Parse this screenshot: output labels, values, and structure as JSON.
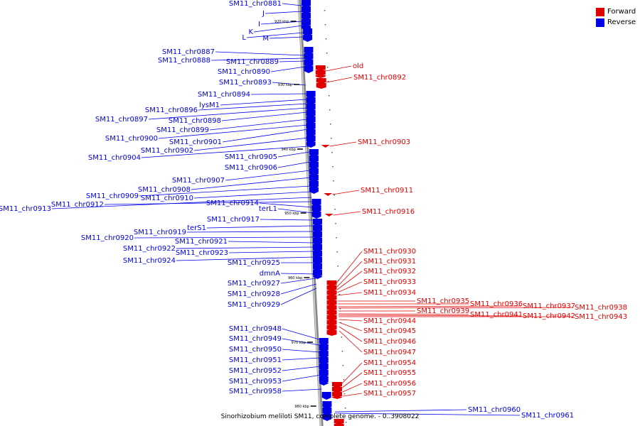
{
  "legend": {
    "forward_label": "Forward",
    "reverse_label": "Reverse",
    "forward_color": "#e00000",
    "reverse_color": "#0000e8"
  },
  "genome_caption": "Sinorhizobium meliloti SM11, complete genome. - 0..3908022",
  "kbp_ticks": [
    "920 kbp",
    "930 kbp",
    "940 kbp",
    "950 kbp",
    "960 kbp",
    "970 kbp",
    "980 kbp"
  ],
  "reverse_labels": [
    "SM11_chr0881",
    "J",
    "I",
    "K",
    "L",
    "M",
    "SM11_chr0887",
    "SM11_chr0888",
    "SM11_chr0889",
    "SM11_chr0890",
    "SM11_chr0893",
    "SM11_chr0894",
    "lysM1",
    "SM11_chr0896",
    "SM11_chr0897",
    "SM11_chr0898",
    "SM11_chr0899",
    "SM11_chr0900",
    "SM11_chr0901",
    "SM11_chr0902",
    "SM11_chr0904",
    "SM11_chr0905",
    "SM11_chr0906",
    "SM11_chr0907",
    "SM11_chr0908",
    "SM11_chr0909",
    "SM11_chr0910",
    "SM11_chr0913",
    "SM11_chr0912",
    "SM11_chr0914",
    "terL1",
    "SM11_chr0917",
    "terS1",
    "SM11_chr0919",
    "SM11_chr0920",
    "SM11_chr0921",
    "SM11_chr0922",
    "SM11_chr0923",
    "SM11_chr0924",
    "SM11_chr0925",
    "dmnA",
    "SM11_chr0927",
    "SM11_chr0928",
    "SM11_chr0929",
    "SM11_chr0948",
    "SM11_chr0949",
    "SM11_chr0950",
    "SM11_chr0951",
    "SM11_chr0952",
    "SM11_chr0953",
    "SM11_chr0958",
    "SM11_chr0960",
    "SM11_chr0961"
  ],
  "forward_labels": [
    "old",
    "SM11_chr0892",
    "SM11_chr0903",
    "SM11_chr0911",
    "SM11_chr0916",
    "SM11_chr0930",
    "SM11_chr0931",
    "SM11_chr0932",
    "SM11_chr0933",
    "SM11_chr0934",
    "SM11_chr0935",
    "SM11_chr0936",
    "SM11_chr0937",
    "SM11_chr0938",
    "SM11_chr0939",
    "SM11_chr0941",
    "SM11_chr0942",
    "SM11_chr0943",
    "SM11_chr0944",
    "SM11_chr0945",
    "SM11_chr0946",
    "SM11_chr0947",
    "SM11_chr0954",
    "SM11_chr0955",
    "SM11_chr0956",
    "SM11_chr0957"
  ]
}
